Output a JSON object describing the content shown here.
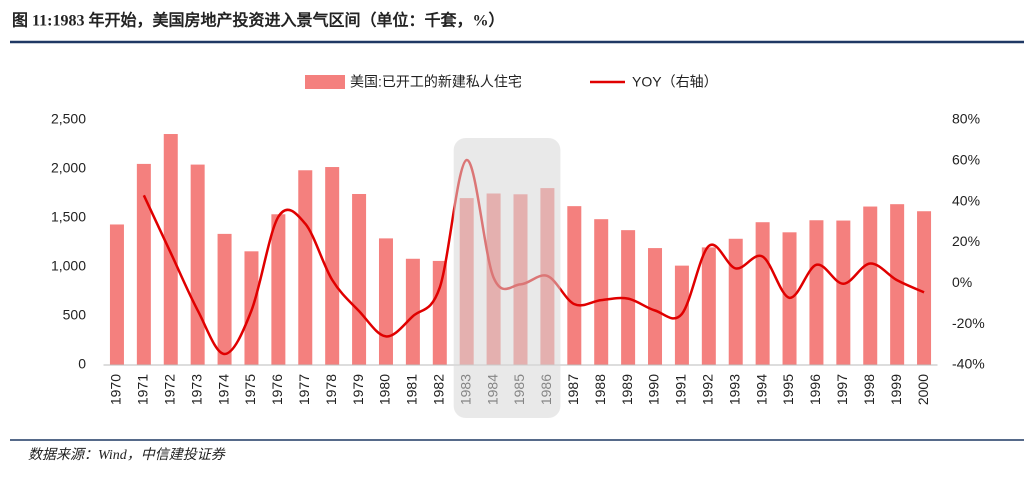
{
  "chart_data": {
    "type": "bar-line",
    "title": "图 11:1983 年开始，美国房地产投资进入景气区间（单位：千套，%）",
    "source": "数据来源：Wind，中信建投证券",
    "categories": [
      "1970",
      "1971",
      "1972",
      "1973",
      "1974",
      "1975",
      "1976",
      "1977",
      "1978",
      "1979",
      "1980",
      "1981",
      "1982",
      "1983",
      "1984",
      "1985",
      "1986",
      "1987",
      "1988",
      "1989",
      "1990",
      "1991",
      "1992",
      "1993",
      "1994",
      "1995",
      "1996",
      "1997",
      "1998",
      "1999",
      "2000"
    ],
    "series": [
      {
        "name": "美国:已开工的新建私人住宅",
        "color": "#f4807e",
        "type": "bar",
        "values": [
          1434,
          2052,
          2357,
          2045,
          1338,
          1160,
          1538,
          1987,
          2020,
          1745,
          1292,
          1084,
          1062,
          1703,
          1750,
          1742,
          1805,
          1621,
          1488,
          1376,
          1193,
          1014,
          1200,
          1288,
          1457,
          1354,
          1477,
          1474,
          1617,
          1641,
          1569
        ]
      },
      {
        "name": "YOY（右轴）",
        "color": "#e00000",
        "type": "line",
        "axis": "y2",
        "values": [
          null,
          43.1,
          14.9,
          -13.2,
          -34.6,
          -13.3,
          32.6,
          29.2,
          1.7,
          -13.6,
          -26.0,
          -16.1,
          -2.0,
          60.4,
          2.8,
          -0.5,
          3.6,
          -10.2,
          -8.2,
          -7.5,
          -13.3,
          -15.0,
          18.3,
          7.3,
          13.1,
          -7.1,
          9.1,
          -0.2,
          9.7,
          1.5,
          -4.4
        ]
      }
    ],
    "ylim": [
      0,
      2500
    ],
    "yticks": [
      0,
      500,
      {
        "value": 1000,
        "label": "1,000"
      },
      {
        "value": 1500,
        "label": "1,500"
      },
      {
        "value": 2000,
        "label": "2,000"
      },
      {
        "value": 2500,
        "label": "2,500"
      }
    ],
    "y2lim": [
      -40,
      80
    ],
    "y2ticks": [
      {
        "value": -40,
        "label": "-40%"
      },
      {
        "value": -20,
        "label": "-20%"
      },
      {
        "value": 0,
        "label": "0%"
      },
      {
        "value": 20,
        "label": "20%"
      },
      {
        "value": 40,
        "label": "40%"
      },
      {
        "value": 60,
        "label": "60%"
      },
      {
        "value": 80,
        "label": "80%"
      }
    ],
    "grid": false,
    "legend": "top"
  }
}
